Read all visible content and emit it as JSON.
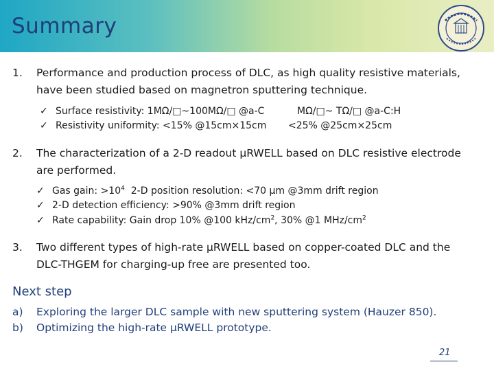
{
  "header": {
    "title": "Summary"
  },
  "items": [
    {
      "number": "1.",
      "line1": "Performance and production process of DLC, as high quality resistive materials,",
      "line2": "have been studied based on magnetron sputtering technique.",
      "checks": [
        {
          "a": "Surface resistivity: 1MΩ/□~100MΩ/□ @a-C",
          "b": "MΩ/□~ TΩ/□ @a-C:H"
        },
        {
          "a": "Resistivity uniformity: <15% @15cm×15cm",
          "b": "<25% @25cm×25cm"
        }
      ]
    },
    {
      "number": "2.",
      "line1": "The characterization of a 2-D readout µRWELL based on DLC resistive electrode",
      "line2": "are performed.",
      "checks": [
        {
          "pre": "Gas gain: >10",
          "sup": "4",
          "post": "  2-D position resolution: <70 µm @3mm drift region"
        },
        {
          "pre": "2-D detection efficiency: >90% @3mm drift region"
        },
        {
          "pre": "Rate capability: Gain drop 10% @100 kHz/cm",
          "sup": "2",
          "post": ", 30% @1 MHz/cm",
          "sup2": "2"
        }
      ]
    },
    {
      "number": "3.",
      "line1": "Two different types of high-rate µRWELL based on copper-coated DLC and the",
      "line2": "DLC-THGEM for charging-up free are presented too."
    }
  ],
  "next_step": {
    "title": "Next step",
    "items": [
      {
        "label": "a)",
        "text": "Exploring the larger DLC sample with new sputtering system (Hauzer 850)."
      },
      {
        "label": "b)",
        "text": "Optimizing the high-rate µRWELL prototype."
      }
    ]
  },
  "check_glyph": "✓",
  "page_number": "21",
  "colors": {
    "accent": "#1f3f7a",
    "header_start": "#1fa7c4",
    "header_end": "#e9eec4"
  }
}
